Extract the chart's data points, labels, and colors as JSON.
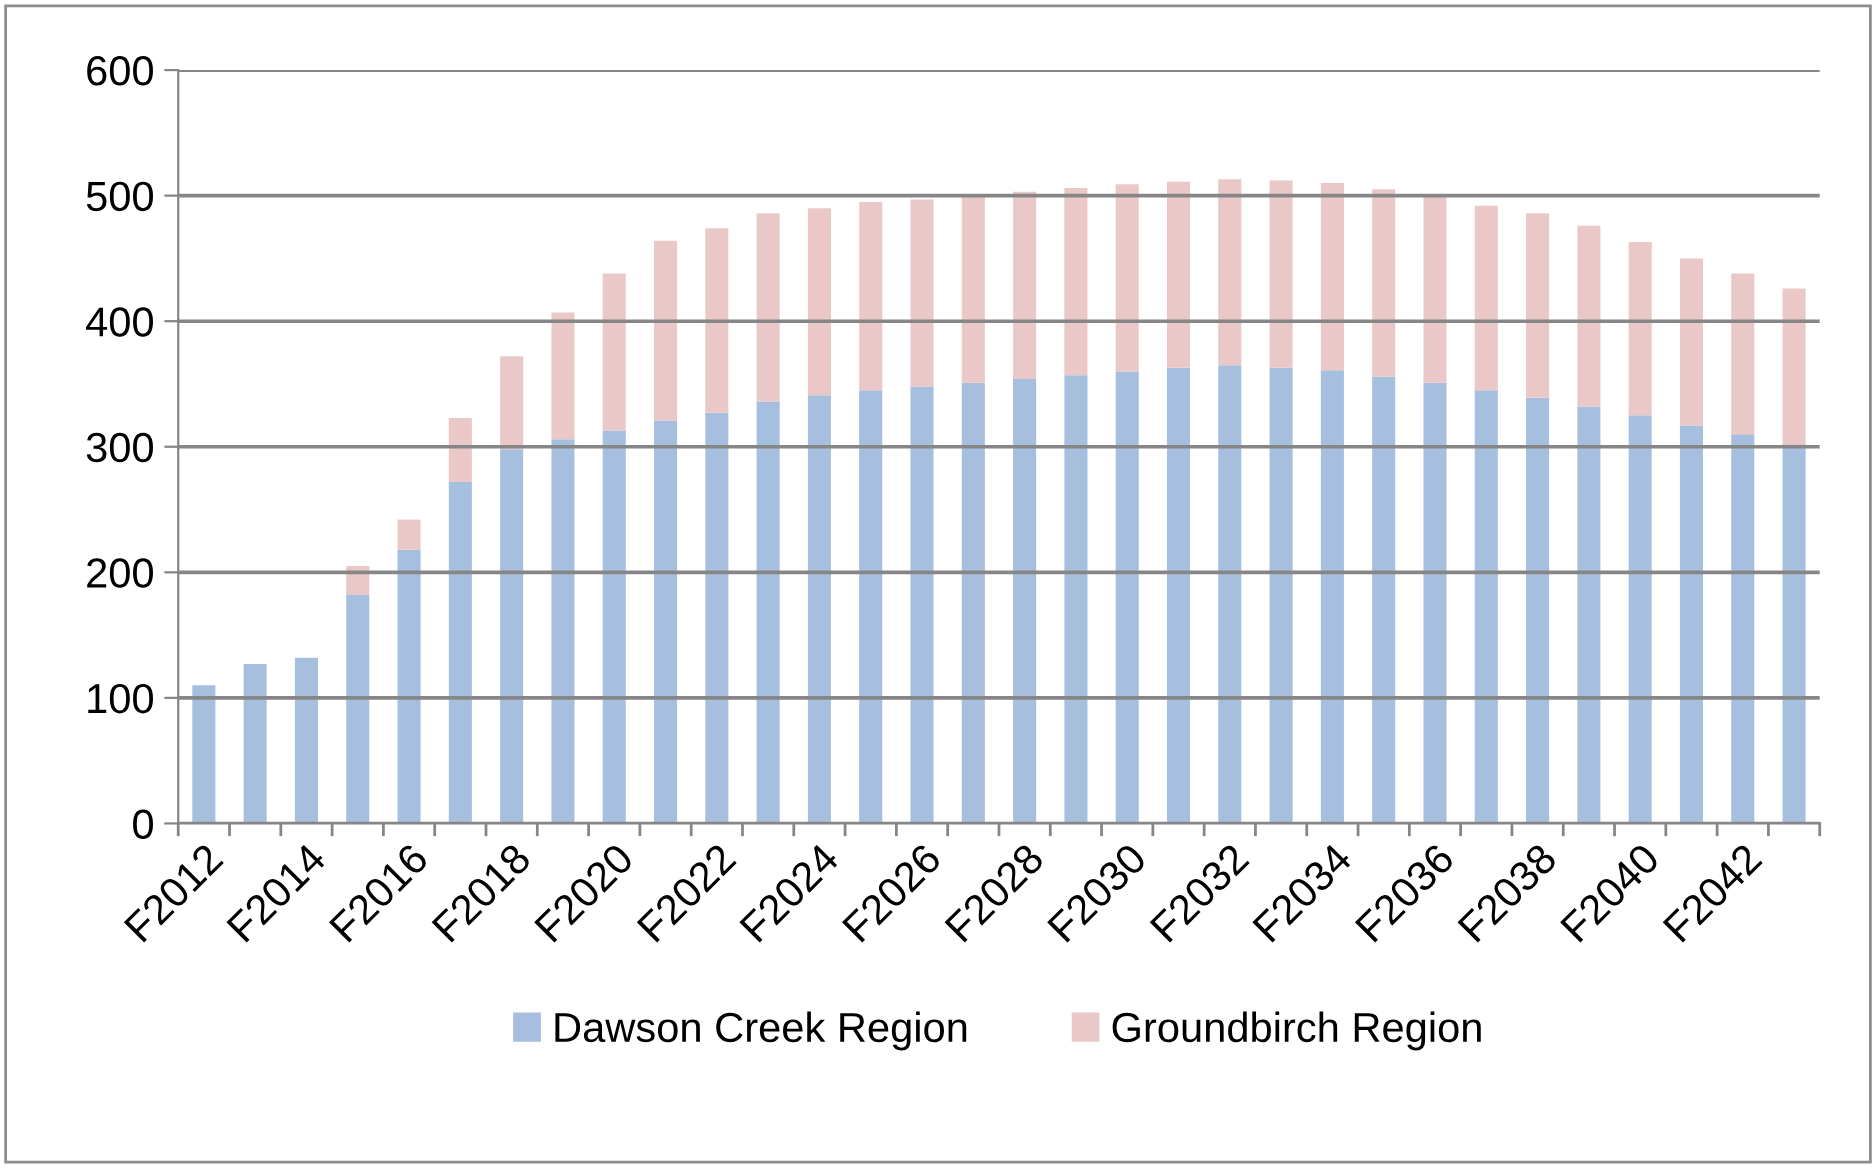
{
  "chart_data": {
    "type": "bar",
    "stacked": true,
    "categories": [
      "F2012",
      null,
      "F2014",
      null,
      "F2016",
      null,
      "F2018",
      null,
      "F2020",
      null,
      "F2022",
      null,
      "F2024",
      null,
      "F2026",
      null,
      "F2028",
      null,
      "F2030",
      null,
      "F2032",
      null,
      "F2034",
      null,
      "F2036",
      null,
      "F2038",
      null,
      "F2040",
      null,
      "F2042",
      null
    ],
    "series": [
      {
        "name": "Dawson Creek Region",
        "color": "#a7bfde",
        "values": [
          110,
          127,
          132,
          182,
          218,
          272,
          298,
          306,
          313,
          321,
          327,
          336,
          341,
          345,
          348,
          351,
          354,
          357,
          360,
          363,
          365,
          363,
          361,
          356,
          351,
          345,
          339,
          332,
          325,
          317,
          310,
          302
        ]
      },
      {
        "name": "Groundbirch Region",
        "color": "#ebc8c8",
        "values": [
          0,
          0,
          0,
          23,
          24,
          51,
          74,
          101,
          125,
          143,
          147,
          150,
          149,
          150,
          149,
          149,
          149,
          149,
          149,
          148,
          148,
          149,
          149,
          149,
          149,
          147,
          147,
          144,
          138,
          133,
          128,
          124
        ]
      }
    ],
    "ylim": [
      0,
      600
    ],
    "yticks": [
      0,
      100,
      200,
      300,
      400,
      500,
      600
    ],
    "grid": "y",
    "legend": "bottom"
  }
}
